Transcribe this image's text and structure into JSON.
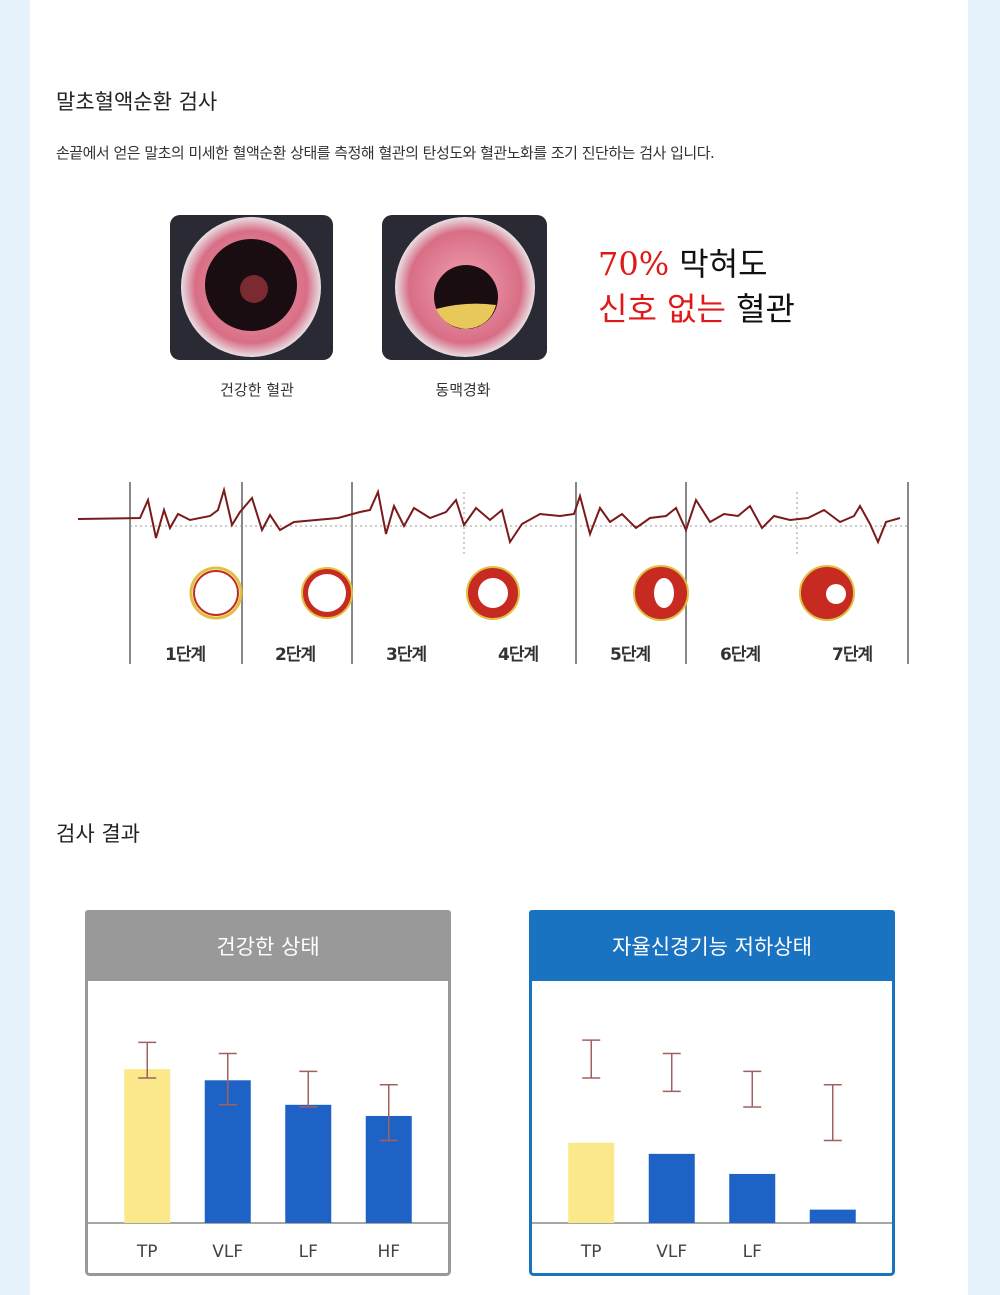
{
  "section1": {
    "title": "말초혈액순환 검사",
    "description": "손끝에서 얻은 말초의 미세한 혈액순환 상태를 측정해 혈관의 탄성도와 혈관노화를 조기 진단하는 검사 입니다.",
    "images": [
      {
        "caption": "건강한 혈관"
      },
      {
        "caption": "동맥경화"
      }
    ],
    "headline": [
      [
        {
          "text": "70%",
          "color": "#e01818"
        },
        {
          "text": " 막혀도",
          "color": "#111111"
        }
      ],
      [
        {
          "text": "신호 없는",
          "color": "#e01818"
        },
        {
          "text": " 혈관",
          "color": "#111111"
        }
      ]
    ],
    "stages": [
      "1단계",
      "2단계",
      "3단계",
      "4단계",
      "5단계",
      "6단계",
      "7단계"
    ]
  },
  "section2": {
    "title": "검사 결과"
  },
  "chart_data": [
    {
      "type": "bar",
      "title": "건강한 상태",
      "header_color": "#999999",
      "categories": [
        "TP",
        "VLF",
        "LF",
        "HF"
      ],
      "colors": [
        "#fbe88a",
        "#1f62c6",
        "#1f62c6",
        "#1f62c6"
      ],
      "values": [
        69,
        64,
        53,
        48
      ],
      "ranges": [
        [
          65,
          81
        ],
        [
          53,
          76
        ],
        [
          52,
          68
        ],
        [
          37,
          62
        ]
      ],
      "ylim": [
        0,
        100
      ]
    },
    {
      "type": "bar",
      "title": "자율신경기능 저하상태",
      "header_color": "#1a73c0",
      "categories": [
        "TP",
        "VLF",
        "LF",
        null
      ],
      "colors": [
        "#fbe88a",
        "#1f62c6",
        "#1f62c6",
        "#1f62c6"
      ],
      "values": [
        36,
        31,
        22,
        6
      ],
      "ranges": [
        [
          65,
          82
        ],
        [
          59,
          76
        ],
        [
          52,
          68
        ],
        [
          37,
          62
        ]
      ],
      "ylim": [
        0,
        100
      ]
    }
  ]
}
